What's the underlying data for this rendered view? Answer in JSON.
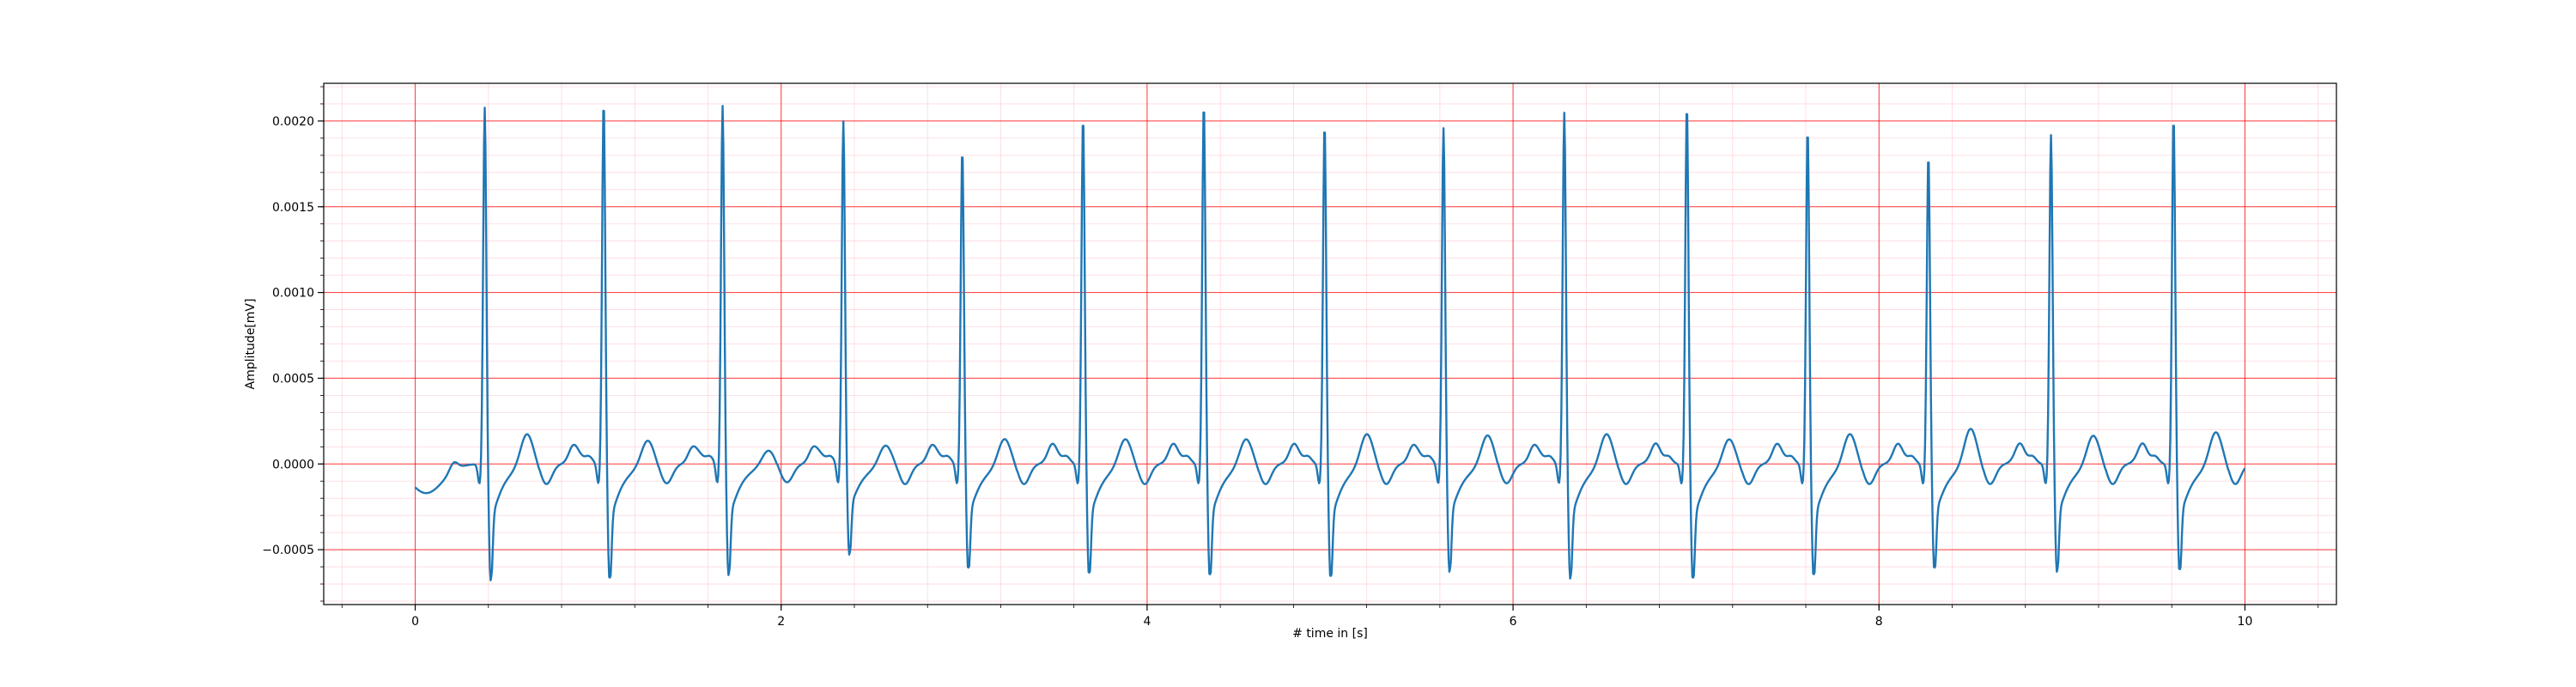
{
  "chart_data": {
    "type": "line",
    "title": "",
    "xlabel": "# time in [s]",
    "ylabel": "Amplitude[mV]",
    "xlim": [
      -0.5,
      10.5
    ],
    "ylim": [
      -0.00082,
      0.00222
    ],
    "grid": {
      "major_color": "#ff0000",
      "minor_color": "#ffb6c1",
      "x_major_step": 2,
      "y_major_step": 0.0005,
      "minor_subdivisions": 5
    },
    "x_ticks": [
      0,
      2,
      4,
      6,
      8,
      10
    ],
    "x_tick_labels": [
      "0",
      "2",
      "4",
      "6",
      "8",
      "10"
    ],
    "y_ticks": [
      -0.0005,
      0.0,
      0.0005,
      0.001,
      0.0015,
      0.002
    ],
    "y_tick_labels": [
      "−0.0005",
      "0.0000",
      "0.0005",
      "0.0010",
      "0.0015",
      "0.0020"
    ],
    "line_color": "#1f77b4",
    "ecg": {
      "duration": 10.0,
      "sample_rate": 250,
      "baseline_start": -0.00017,
      "r_peaks": [
        {
          "t": 0.38,
          "amp": 0.00205,
          "s": -0.00068
        },
        {
          "t": 1.03,
          "amp": 0.00209,
          "s": -0.00068
        },
        {
          "t": 1.68,
          "amp": 0.00206,
          "s": -0.00065
        },
        {
          "t": 2.34,
          "amp": 0.00197,
          "s": -0.00053
        },
        {
          "t": 2.99,
          "amp": 0.00181,
          "s": -0.00062
        },
        {
          "t": 3.65,
          "amp": 0.002,
          "s": -0.00065
        },
        {
          "t": 4.31,
          "amp": 0.00208,
          "s": -0.00066
        },
        {
          "t": 4.97,
          "amp": 0.00196,
          "s": -0.00067
        },
        {
          "t": 5.62,
          "amp": 0.00193,
          "s": -0.00063
        },
        {
          "t": 6.28,
          "amp": 0.00202,
          "s": -0.00067
        },
        {
          "t": 6.95,
          "amp": 0.00207,
          "s": -0.00068
        },
        {
          "t": 7.61,
          "amp": 0.00193,
          "s": -0.00066
        },
        {
          "t": 8.27,
          "amp": 0.00178,
          "s": -0.00062
        },
        {
          "t": 8.94,
          "amp": 0.00189,
          "s": -0.00063
        },
        {
          "t": 9.61,
          "amp": 0.002,
          "s": -0.00063
        }
      ],
      "t_waves": [
        {
          "t": 0.61,
          "amp": 0.00019
        },
        {
          "t": 1.27,
          "amp": 0.00015
        },
        {
          "t": 1.93,
          "amp": 9e-05
        },
        {
          "t": 2.57,
          "amp": 0.00012
        },
        {
          "t": 3.22,
          "amp": 0.00016
        },
        {
          "t": 3.88,
          "amp": 0.00016
        },
        {
          "t": 4.54,
          "amp": 0.00016
        },
        {
          "t": 5.2,
          "amp": 0.00019
        },
        {
          "t": 5.86,
          "amp": 0.00018
        },
        {
          "t": 6.51,
          "amp": 0.00019
        },
        {
          "t": 7.18,
          "amp": 0.00016
        },
        {
          "t": 7.84,
          "amp": 0.00019
        },
        {
          "t": 8.5,
          "amp": 0.00022
        },
        {
          "t": 9.17,
          "amp": 0.00018
        },
        {
          "t": 9.84,
          "amp": 0.0002
        }
      ]
    }
  }
}
